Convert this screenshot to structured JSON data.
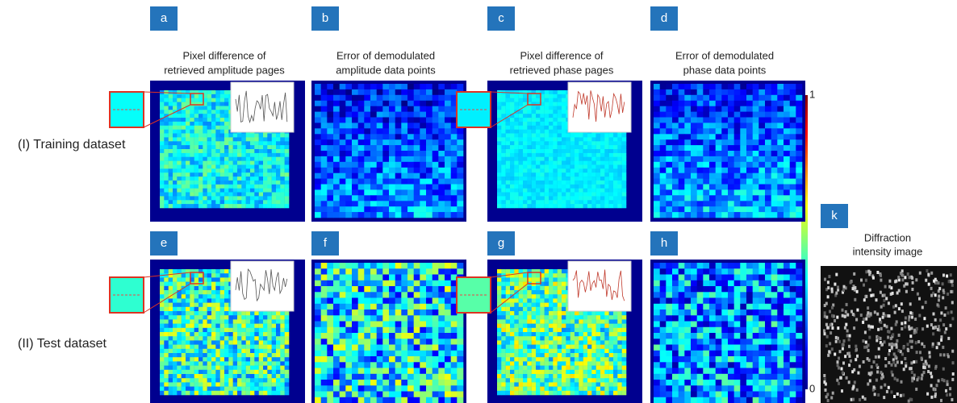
{
  "panels": [
    {
      "letter": "a",
      "title": [
        "Pixel difference of",
        "retrieved amplitude pages"
      ]
    },
    {
      "letter": "b",
      "title": [
        "Error of demodulated",
        "amplitude data points"
      ]
    },
    {
      "letter": "c",
      "title": [
        "Pixel difference of",
        "retrieved phase pages"
      ]
    },
    {
      "letter": "d",
      "title": [
        "Error of demodulated",
        "phase data points"
      ]
    },
    {
      "letter": "e"
    },
    {
      "letter": "f"
    },
    {
      "letter": "g"
    },
    {
      "letter": "h"
    }
  ],
  "rows": [
    "(I) Training dataset",
    "(II) Test dataset"
  ],
  "colorbar": {
    "max": 1,
    "min": 0
  },
  "panel_k": {
    "letter": "k",
    "title": [
      "Diffraction",
      "intensity image"
    ]
  }
}
